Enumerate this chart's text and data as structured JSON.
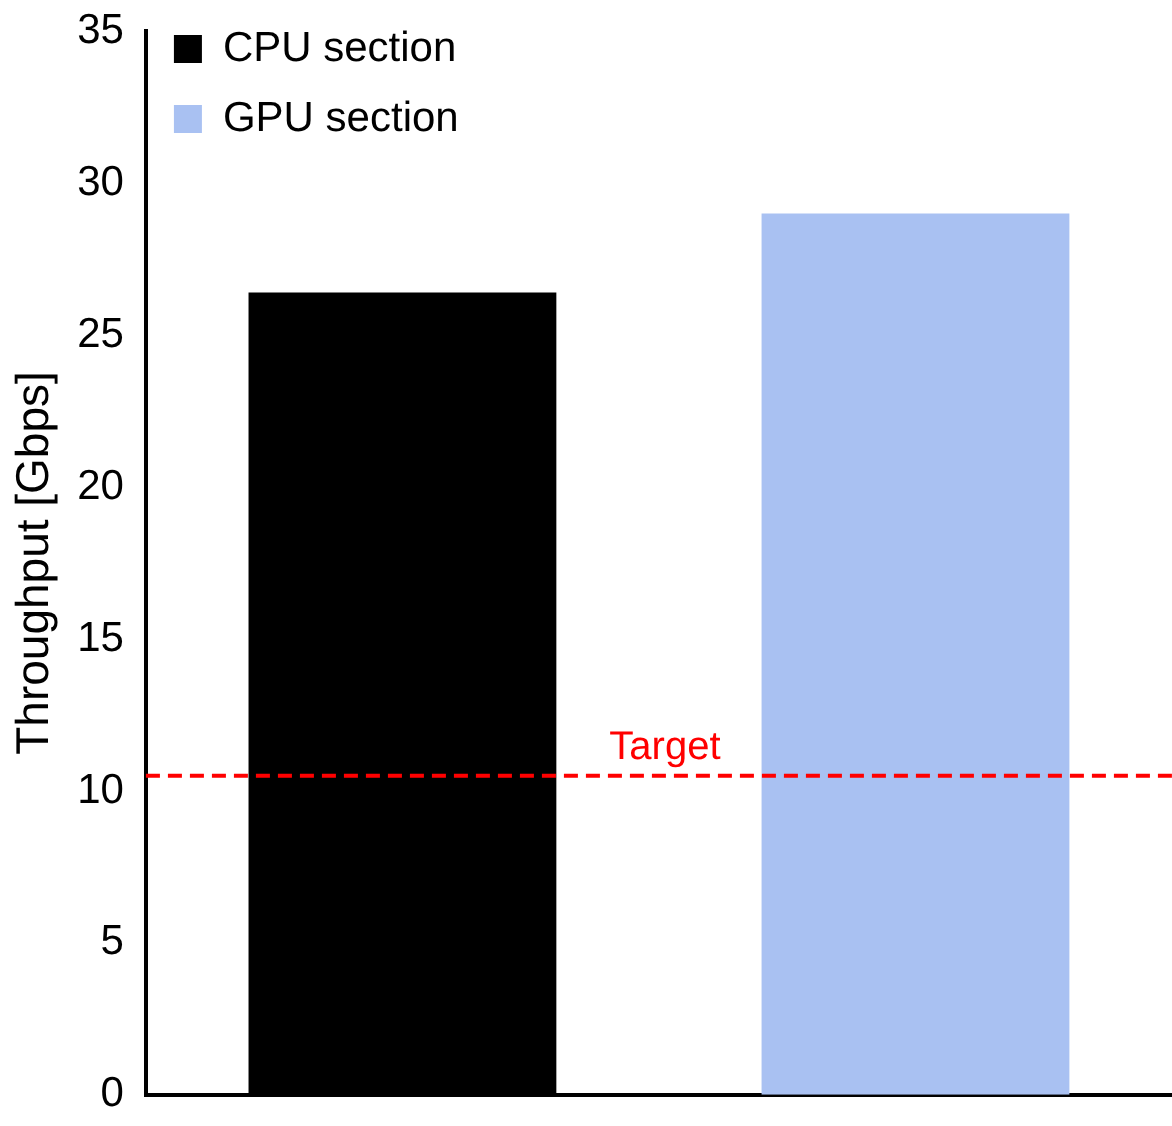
{
  "chart_data": {
    "type": "bar",
    "ylabel": "Throughput [Gbps]",
    "categories": [
      null,
      null
    ],
    "series": [
      {
        "name": "CPU section",
        "color": "#000000",
        "values": [
          26.4,
          null
        ]
      },
      {
        "name": "GPU section",
        "color": "#a9c1f2",
        "values": [
          null,
          29.0
        ]
      }
    ],
    "ylim": [
      0,
      35
    ],
    "yticks": [
      0,
      5,
      10,
      15,
      20,
      25,
      30,
      35
    ],
    "grid": false,
    "legend": "top left",
    "ref_lines": [
      {
        "axis": "y",
        "value": 10.5,
        "label": "Target",
        "color": "#ff0000",
        "line_style": "dashed"
      }
    ]
  }
}
